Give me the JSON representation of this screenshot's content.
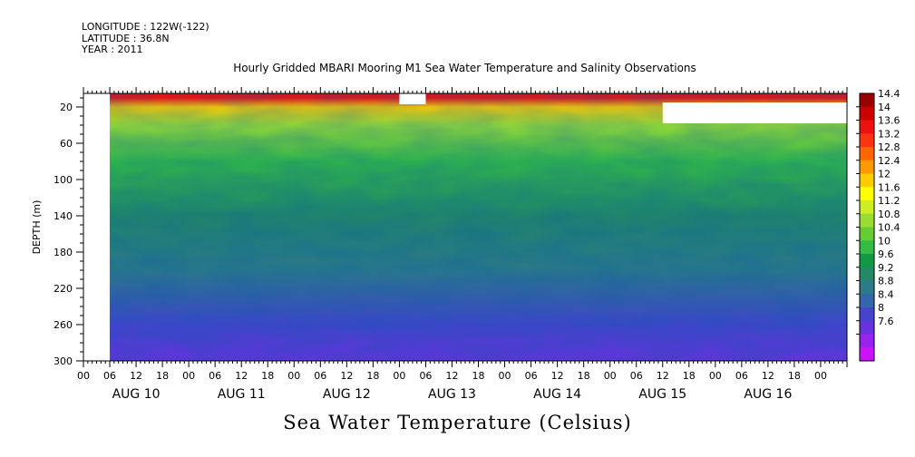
{
  "header": {
    "longitude": "LONGITUDE : 122W(-122)",
    "latitude": "LATITUDE : 36.8N",
    "year": "YEAR : 2011",
    "title": "Hourly Gridded MBARI Mooring M1 Sea Water Temperature and Salinity Observations"
  },
  "footer": {
    "variable_label": "Sea Water Temperature (Celsius)"
  },
  "chart_data": {
    "type": "heatmap",
    "title": "Hourly Gridded MBARI Mooring M1 Sea Water Temperature and Salinity Observations",
    "xlabel": "",
    "ylabel": "DEPTH (m)",
    "colorbar_label": "Sea Water Temperature (Celsius)",
    "x_range_hours": [
      0,
      168
    ],
    "x_first_day": "AUG 10",
    "x_hour_ticks": [
      "00",
      "06",
      "12",
      "18",
      "00",
      "06",
      "12",
      "18",
      "00",
      "06",
      "12",
      "18",
      "00",
      "06",
      "12",
      "18",
      "00",
      "06",
      "12",
      "18",
      "00",
      "06",
      "12",
      "18",
      "00",
      "06",
      "12",
      "18",
      "00"
    ],
    "x_tick_hours": [
      -6,
      0,
      6,
      12,
      18,
      24,
      30,
      36,
      42,
      48,
      54,
      60,
      66,
      72,
      78,
      84,
      90,
      96,
      102,
      108,
      114,
      120,
      126,
      132,
      138,
      144,
      150,
      156,
      162
    ],
    "x_day_labels": [
      "AUG 10",
      "AUG 11",
      "AUG 12",
      "AUG 13",
      "AUG 14",
      "AUG 15",
      "AUG 16"
    ],
    "y_range": [
      300,
      5
    ],
    "y_ticks": [
      "20",
      "60",
      "100",
      "140",
      "180",
      "220",
      "260",
      "300"
    ],
    "y_tick_values": [
      20,
      60,
      100,
      140,
      180,
      220,
      260,
      300
    ],
    "colorbar_levels": [
      "14.4",
      "14",
      "13.6",
      "13.2",
      "12.8",
      "12.4",
      "12",
      "11.6",
      "11.2",
      "10.8",
      "10.4",
      "10",
      "9.6",
      "9.2",
      "8.8",
      "8.4",
      "8",
      "7.6"
    ],
    "colorbar_colors": [
      "#990000",
      "#cc0000",
      "#ee1111",
      "#ff3311",
      "#ff6600",
      "#ff9900",
      "#ffcc00",
      "#ffff00",
      "#ccee22",
      "#99dd33",
      "#66cc33",
      "#33bb44",
      "#119944",
      "#228866",
      "#2d7a88",
      "#3366aa",
      "#4444cc",
      "#6633dd",
      "#9922ee",
      "#cc11ff"
    ],
    "missing_data_hours": [
      [
        -6,
        0
      ]
    ],
    "missing_data_blocks": [
      {
        "hours": [
          66,
          72
        ],
        "depth": [
          5,
          17
        ]
      },
      {
        "hours": [
          126,
          168
        ],
        "depth": [
          15,
          38
        ]
      }
    ],
    "summary_by_depth": [
      {
        "depth": 10,
        "temp": 13.8
      },
      {
        "depth": 20,
        "temp": 12.0
      },
      {
        "depth": 40,
        "temp": 11.0
      },
      {
        "depth": 80,
        "temp": 10.2
      },
      {
        "depth": 140,
        "temp": 9.4
      },
      {
        "depth": 200,
        "temp": 8.8
      },
      {
        "depth": 260,
        "temp": 8.3
      },
      {
        "depth": 295,
        "temp": 7.9
      }
    ]
  }
}
